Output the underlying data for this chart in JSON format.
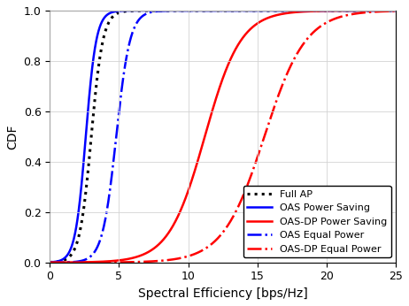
{
  "title": "",
  "xlabel": "Spectral Efficiency [bps/Hz]",
  "ylabel": "CDF",
  "xlim": [
    0,
    25
  ],
  "ylim": [
    0,
    1
  ],
  "xticks": [
    0,
    5,
    10,
    15,
    20,
    25
  ],
  "yticks": [
    0,
    0.2,
    0.4,
    0.6,
    0.8,
    1.0
  ],
  "curves": [
    {
      "label": "Full AP",
      "color": "black",
      "linestyle": "dotted",
      "linewidth": 2.2,
      "x_mid": 3.0,
      "sigmoid_scale": 0.42
    },
    {
      "label": "OAS Power Saving",
      "color": "blue",
      "linestyle": "solid",
      "linewidth": 1.8,
      "x_mid": 2.6,
      "sigmoid_scale": 0.38
    },
    {
      "label": "OAS-DP Power Saving",
      "color": "red",
      "linestyle": "solid",
      "linewidth": 1.8,
      "x_mid": 11.2,
      "sigmoid_scale": 1.3
    },
    {
      "label": "OAS Equal Power",
      "color": "blue",
      "linestyle": "dashdot",
      "linewidth": 1.8,
      "x_mid": 4.8,
      "sigmoid_scale": 0.5
    },
    {
      "label": "OAS-DP Equal Power",
      "color": "red",
      "linestyle": "dashdot",
      "linewidth": 1.8,
      "x_mid": 15.5,
      "sigmoid_scale": 1.5
    }
  ],
  "legend_loc": "lower right",
  "legend_fontsize": 8.0,
  "axis_fontsize": 10,
  "tick_fontsize": 9,
  "grid": true,
  "grid_color": "#d3d3d3",
  "grid_linewidth": 0.6
}
